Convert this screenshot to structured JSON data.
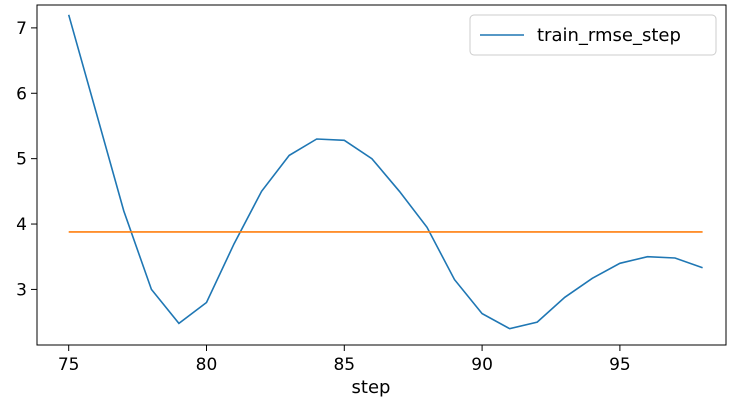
{
  "chart_data": {
    "type": "line",
    "title": "",
    "xlabel": "step",
    "ylabel": "",
    "xlim": [
      73.85,
      98.85
    ],
    "ylim": [
      2.15,
      7.35
    ],
    "xticks": [
      75,
      80,
      85,
      90,
      95
    ],
    "yticks": [
      3,
      4,
      5,
      6,
      7
    ],
    "grid": false,
    "legend_position": "top-right",
    "series": [
      {
        "name": "train_rmse_step",
        "color": "#1f77b4",
        "x": [
          75,
          76,
          77,
          78,
          79,
          80,
          81,
          82,
          83,
          84,
          85,
          86,
          87,
          88,
          89,
          90,
          91,
          92,
          93,
          94,
          95,
          96,
          97,
          98
        ],
        "y": [
          7.2,
          5.7,
          4.2,
          3.0,
          2.48,
          2.8,
          3.7,
          4.5,
          5.05,
          5.3,
          5.28,
          5.0,
          4.5,
          3.95,
          3.15,
          2.63,
          2.4,
          2.5,
          2.88,
          3.17,
          3.4,
          3.5,
          3.48,
          3.33
        ]
      },
      {
        "color": "#ff7f0e",
        "x": [
          75,
          98
        ],
        "y": [
          3.88,
          3.88
        ]
      }
    ]
  }
}
